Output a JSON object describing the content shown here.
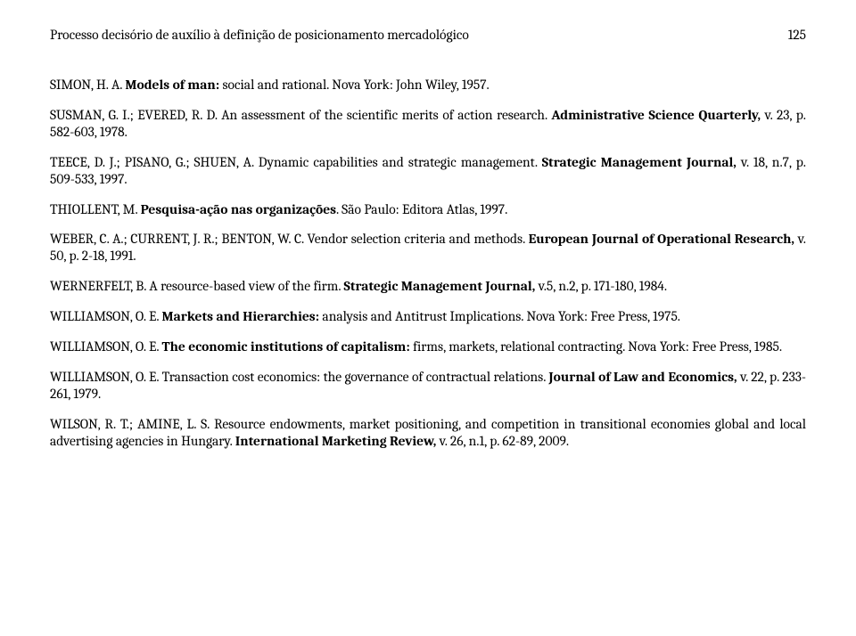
{
  "header": {
    "running_title": "Processo decisório de auxílio à definição de posicionamento mercadológico",
    "page_number": "125"
  },
  "refs": [
    {
      "pre": "SIMON, H. A. ",
      "bold": "Models of man:",
      "post": " social and rational. Nova York: John Wiley, 1957."
    },
    {
      "pre": "SUSMAN, G. I.; EVERED, R. D. An assessment of the scientific merits of action research. ",
      "bold": "Administrative Science Quarterly,",
      "post": " v. 23, p. 582-603, 1978."
    },
    {
      "pre": "TEECE, D. J.; PISANO, G.; SHUEN, A. Dynamic capabilities and strategic management. ",
      "bold": "Strategic Management Journal,",
      "post": " v. 18, n.7, p. 509-533, 1997."
    },
    {
      "pre": "THIOLLENT, M. ",
      "bold": "Pesquisa-ação nas organizações",
      "post": ". São Paulo: Editora Atlas, 1997."
    },
    {
      "pre": "WEBER, C. A.; CURRENT, J. R.; BENTON, W. C. Vendor selection criteria and methods. ",
      "bold": "European Journal of Operational Research,",
      "post": " v. 50, p. 2-18, 1991."
    },
    {
      "pre": "WERNERFELT, B. A resource-based view of the firm. ",
      "bold": "Strategic Management Journal,",
      "post": " v.5, n.2, p. 171-180, 1984."
    },
    {
      "pre": "WILLIAMSON, O. E. ",
      "bold": "Markets and Hierarchies:",
      "post": " analysis and Antitrust Implications. Nova York: Free Press, 1975."
    },
    {
      "pre": "WILLIAMSON, O. E. ",
      "bold": "The economic institutions of capitalism:",
      "post": " firms, markets, relational contracting. Nova York: Free Press, 1985."
    },
    {
      "pre": "WILLIAMSON, O. E. Transaction cost economics: the governance of contractual relations. ",
      "bold": "Journal of Law and Economics,",
      "post": " v. 22, p. 233-261, 1979."
    },
    {
      "pre": "WILSON, R. T.; AMINE, L. S. Resource endowments, market positioning, and competition in transitional economies global and local advertising agencies in Hungary. ",
      "bold": "International Marketing Review,",
      "post": " v. 26, n.1, p. 62-89, 2009."
    }
  ]
}
